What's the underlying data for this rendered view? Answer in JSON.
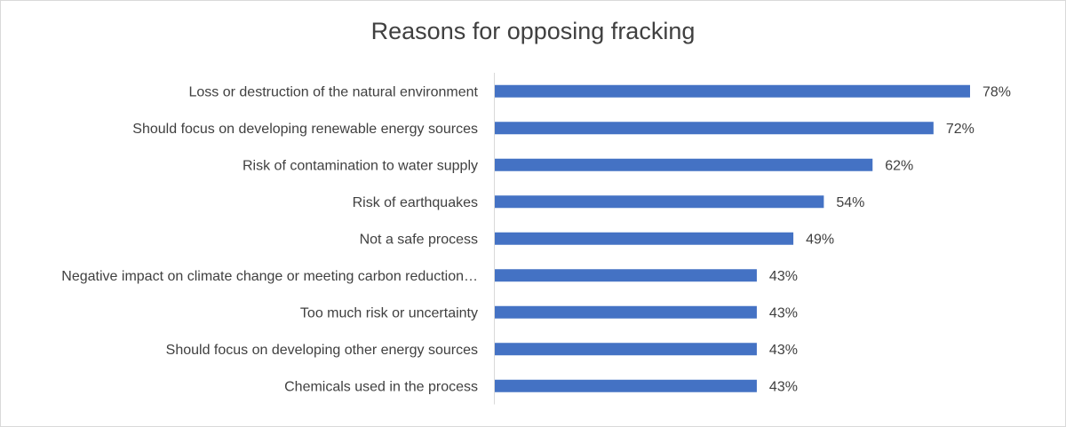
{
  "chart_data": {
    "type": "bar",
    "orientation": "horizontal",
    "title": "Reasons for opposing fracking",
    "xlabel": "",
    "ylabel": "",
    "categories": [
      "Loss or destruction of the natural environment",
      "Should focus on developing renewable energy sources",
      "Risk of contamination to water supply",
      "Risk of earthquakes",
      "Not a safe process",
      "Negative impact on climate change or meeting carbon reduction…",
      "Too much risk or uncertainty",
      "Should focus on developing other energy sources",
      "Chemicals used in the process"
    ],
    "values": [
      78,
      72,
      62,
      54,
      49,
      43,
      43,
      43,
      43
    ],
    "data_labels": [
      "78%",
      "72%",
      "62%",
      "54%",
      "49%",
      "43%",
      "43%",
      "43%",
      "43%"
    ],
    "xlim": [
      0,
      78
    ],
    "grid": false,
    "legend": "none",
    "bar_color": "#4472c4"
  }
}
